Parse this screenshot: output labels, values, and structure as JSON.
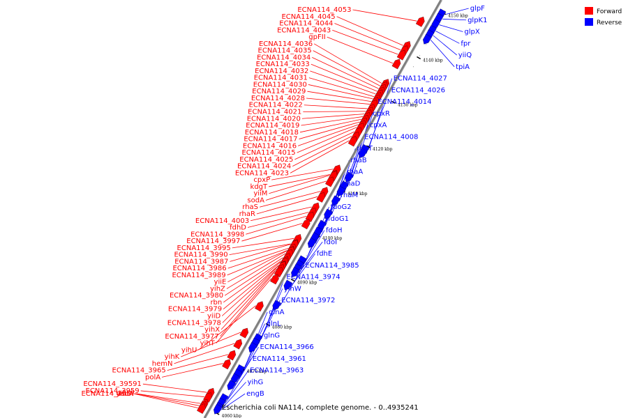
{
  "caption": "Escherichia coli NA114, complete genome. - 0..4935241",
  "colors": {
    "forward": "#ff0000",
    "reverse": "#0000ff",
    "backbone": "#808080"
  },
  "legend": [
    {
      "label": "Forward",
      "color": "#ff0000"
    },
    {
      "label": "Reverse",
      "color": "#0000ff"
    }
  ],
  "scale_ticks": [
    {
      "kbp": 4060,
      "label": "4060 kbp"
    },
    {
      "kbp": 4070,
      "label": "4070 kbp"
    },
    {
      "kbp": 4080,
      "label": "4080 kbp"
    },
    {
      "kbp": 4090,
      "label": "4090 kbp"
    },
    {
      "kbp": 4100,
      "label": "4100 kbp"
    },
    {
      "kbp": 4110,
      "label": "4110 kbp"
    },
    {
      "kbp": 4120,
      "label": "4120 kbp"
    },
    {
      "kbp": 4130,
      "label": "4130 kbp"
    },
    {
      "kbp": 4140,
      "label": "4140 kbp"
    },
    {
      "kbp": 4150,
      "label": "4150 kbp"
    }
  ],
  "forward_genes": [
    {
      "label": "ECNA114_4036",
      "kbp": 4132.5
    },
    {
      "label": "ECNA114_4035",
      "kbp": 4131.9
    },
    {
      "label": "ECNA114_4034",
      "kbp": 4131.3
    },
    {
      "label": "ECNA114_4033",
      "kbp": 4130.7
    },
    {
      "label": "ECNA114_4032",
      "kbp": 4130.1
    },
    {
      "label": "ECNA114_4031",
      "kbp": 4129.5
    },
    {
      "label": "ECNA114_4030",
      "kbp": 4129.0
    },
    {
      "label": "ECNA114_4029",
      "kbp": 4128.4
    },
    {
      "label": "ECNA114_4028",
      "kbp": 4127.8
    },
    {
      "label": "gpFII",
      "kbp": 4137.0
    },
    {
      "label": "ECNA114_4053",
      "kbp": 4146.5
    },
    {
      "label": "ECNA114_4045",
      "kbp": 4141.0
    },
    {
      "label": "ECNA114_4044",
      "kbp": 4140.0
    },
    {
      "label": "ECNA114_4043",
      "kbp": 4139.0
    },
    {
      "label": "ECNA114_4022",
      "kbp": 4126.8
    },
    {
      "label": "ECNA114_4021",
      "kbp": 4126.2
    },
    {
      "label": "ECNA114_4020",
      "kbp": 4125.6
    },
    {
      "label": "ECNA114_4019",
      "kbp": 4125.0
    },
    {
      "label": "ECNA114_4018",
      "kbp": 4124.4
    },
    {
      "label": "ECNA114_4017",
      "kbp": 4123.8
    },
    {
      "label": "ECNA114_4016",
      "kbp": 4123.2
    },
    {
      "label": "ECNA114_4015",
      "kbp": 4122.6
    },
    {
      "label": "ECNA114_4025",
      "kbp": 4121.6
    },
    {
      "label": "ECNA114_4024",
      "kbp": 4120.6
    },
    {
      "label": "ECNA114_4023",
      "kbp": 4119.6
    },
    {
      "label": "kdgT",
      "kbp": 4112.0
    },
    {
      "label": "cpxP",
      "kbp": 4113.2
    },
    {
      "label": "sodA",
      "kbp": 4110.5
    },
    {
      "label": "yiiM",
      "kbp": 4111.8
    },
    {
      "label": "rhaS",
      "kbp": 4108.2
    },
    {
      "label": "rhaR",
      "kbp": 4107.0
    },
    {
      "label": "fdhD",
      "kbp": 4103.5
    },
    {
      "label": "ECNA114_4003",
      "kbp": 4104.7
    },
    {
      "label": "ECNA114_3998",
      "kbp": 4102.6
    },
    {
      "label": "ECNA114_3997",
      "kbp": 4101.0
    },
    {
      "label": "ECNA114_3987",
      "kbp": 4096.3
    },
    {
      "label": "ECNA114_3986",
      "kbp": 4095.4
    },
    {
      "label": "yiiE",
      "kbp": 4094.8
    },
    {
      "label": "ECNA114_3995",
      "kbp": 4097.6
    },
    {
      "label": "yihZ",
      "kbp": 4094.2
    },
    {
      "label": "ECNA114_3990",
      "kbp": 4096.4
    },
    {
      "label": "ECNA114_3980",
      "kbp": 4093.3
    },
    {
      "label": "rbn",
      "kbp": 4092.6
    },
    {
      "label": "ECNA114_3989",
      "kbp": 4094.9
    },
    {
      "label": "ECNA114_3979",
      "kbp": 4092.3
    },
    {
      "label": "ECNA114_3978",
      "kbp": 4091.5
    },
    {
      "label": "yihX",
      "kbp": 4090.8
    },
    {
      "label": "yiiD",
      "kbp": 4091.6
    },
    {
      "label": "ECNA114_3977",
      "kbp": 4090.2
    },
    {
      "label": "yihT",
      "kbp": 4088.6
    },
    {
      "label": "yihU",
      "kbp": 4082.5
    },
    {
      "label": "yihK",
      "kbp": 4076.5
    },
    {
      "label": "hemN",
      "kbp": 4074.0
    },
    {
      "label": "ECNA114_3965",
      "kbp": 4071.5
    },
    {
      "label": "polA",
      "kbp": 4069.5
    },
    {
      "label": "ECNA114_3959",
      "kbp": 4062.0
    },
    {
      "label": "ECNA114_3957",
      "kbp": 4060.5
    },
    {
      "label": "ECNA114_39591",
      "kbp": 4063.0
    },
    {
      "label": "yihD",
      "kbp": 4059.5
    },
    {
      "label": "dsbA",
      "kbp": 4060.0
    }
  ],
  "reverse_genes": [
    {
      "label": "glpF",
      "kbp": 4149.5
    },
    {
      "label": "glpK1",
      "kbp": 4148.5
    },
    {
      "label": "glpX",
      "kbp": 4147.2
    },
    {
      "label": "fpr",
      "kbp": 4145.8
    },
    {
      "label": "yiiQ",
      "kbp": 4144.8
    },
    {
      "label": "tpiA",
      "kbp": 4143.8
    },
    {
      "label": "ECNA114_4027",
      "kbp": 4119.0
    },
    {
      "label": "ECNA114_4026",
      "kbp": 4118.2
    },
    {
      "label": "ECNA114_4014",
      "kbp": 4112.8
    },
    {
      "label": "cpxR",
      "kbp": 4110.8
    },
    {
      "label": "cpxA",
      "kbp": 4109.6
    },
    {
      "label": "ECNA114_4008",
      "kbp": 4107.5
    },
    {
      "label": "rhaT",
      "kbp": 4104.5
    },
    {
      "label": "rhaB",
      "kbp": 4102.0
    },
    {
      "label": "rhaA",
      "kbp": 4100.5
    },
    {
      "label": "rhaD",
      "kbp": 4099.2
    },
    {
      "label": "rhaM",
      "kbp": 4098.0
    },
    {
      "label": "fdoG2",
      "kbp": 4094.0
    },
    {
      "label": "fdoG1",
      "kbp": 4093.0
    },
    {
      "label": "fdoH",
      "kbp": 4092.2
    },
    {
      "label": "fdoI",
      "kbp": 4091.4
    },
    {
      "label": "fdhE",
      "kbp": 4088.5
    },
    {
      "label": "ECNA114_3985",
      "kbp": 4084.0
    },
    {
      "label": "ECNA114_3974",
      "kbp": 4076.5
    },
    {
      "label": "yihW",
      "kbp": 4075.5
    },
    {
      "label": "ECNA114_3972",
      "kbp": 4074.5
    },
    {
      "label": "glnA",
      "kbp": 4069.5
    },
    {
      "label": "glnL",
      "kbp": 4068.5
    },
    {
      "label": "glnG",
      "kbp": 4067.5
    },
    {
      "label": "ECNA114_3966",
      "kbp": 4066.0
    },
    {
      "label": "ECNA114_3961",
      "kbp": 4063.0
    },
    {
      "label": "ECNA114_3963",
      "kbp": 4062.0
    },
    {
      "label": "yihG",
      "kbp": 4061.0
    },
    {
      "label": "engB",
      "kbp": 4060.6
    }
  ]
}
